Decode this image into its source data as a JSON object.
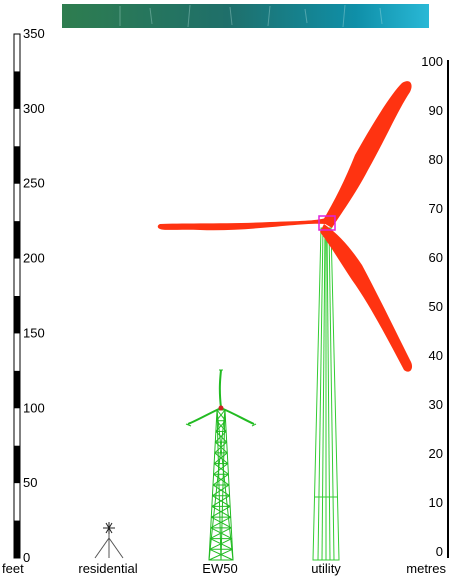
{
  "scales": {
    "feet": {
      "unit_label": "feet",
      "ticks": [
        "0",
        "50",
        "100",
        "150",
        "200",
        "250",
        "300",
        "350"
      ]
    },
    "metres": {
      "unit_label": "metres",
      "ticks": [
        "0",
        "10",
        "20",
        "30",
        "40",
        "50",
        "60",
        "70",
        "80",
        "90",
        "100"
      ]
    }
  },
  "turbines": [
    {
      "label": "residential",
      "tower": "guyed pole",
      "color": "#555555"
    },
    {
      "label": "EW50",
      "tower": "lattice",
      "color": "#22bb22"
    },
    {
      "label": "utility",
      "tower": "tubular",
      "color": "#33cc33",
      "blade_color": "#ff3311",
      "hub_color": "#dd22dd"
    }
  ],
  "banner": {
    "colors": [
      "#2e7d4f",
      "#1f6f6a",
      "#0f8fa8",
      "#29b8d6"
    ]
  }
}
